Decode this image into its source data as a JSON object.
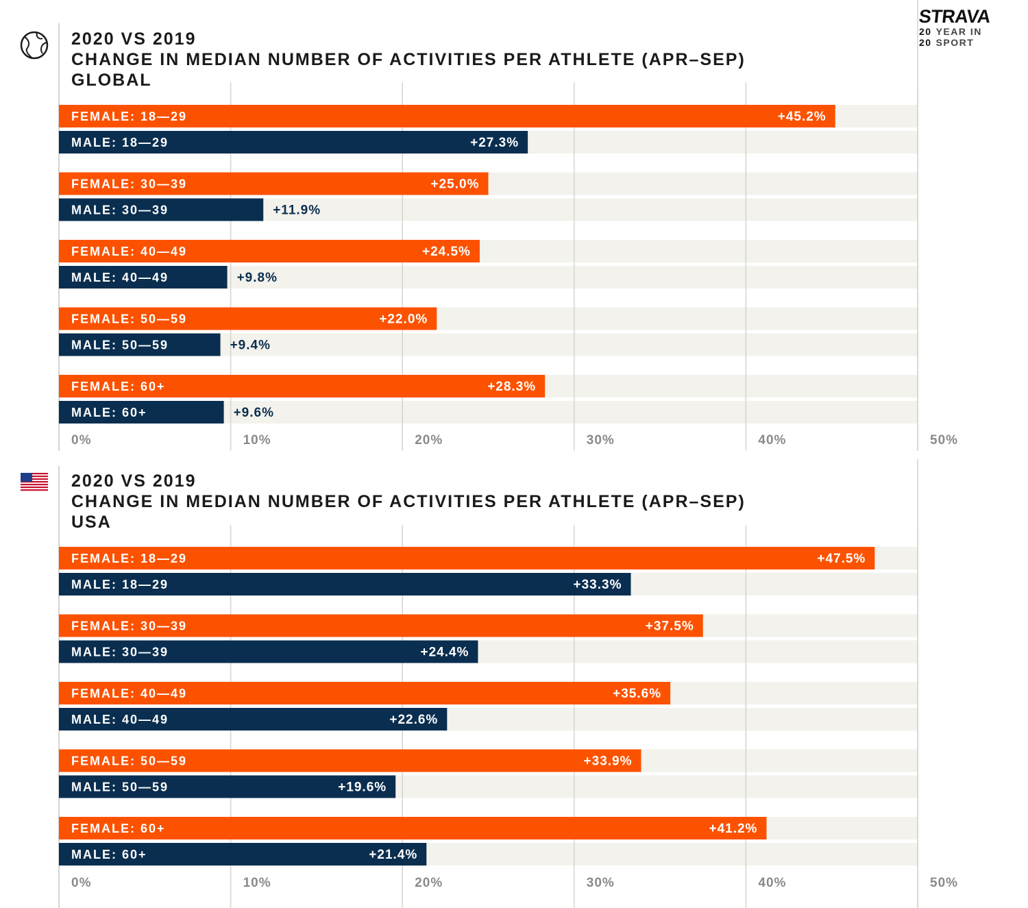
{
  "brand": {
    "logo": "STRAVA",
    "line1_num": "20",
    "line1_text": "YEAR IN",
    "line2_num": "20",
    "line2_text": "SPORT"
  },
  "colors": {
    "female": "#fc5200",
    "male": "#0a2e4f",
    "track": "#f3f2ec",
    "grid": "#d4d4d0",
    "value_outside": "#0a2e4f"
  },
  "chart_data": [
    {
      "type": "bar",
      "orientation": "horizontal",
      "icon": "globe-icon",
      "title_lines": [
        "2020 VS 2019",
        "CHANGE IN MEDIAN NUMBER OF ACTIVITIES PER ATHLETE (APR–SEP)",
        "GLOBAL"
      ],
      "xlim": [
        0,
        50
      ],
      "xticks": [
        0,
        10,
        20,
        30,
        40,
        50
      ],
      "xtick_labels": [
        "0%",
        "10%",
        "20%",
        "30%",
        "40%",
        "50%"
      ],
      "grid": true,
      "bars": [
        {
          "label": "FEMALE: 18—29",
          "group": "female",
          "value": 45.2,
          "value_label": "+45.2%"
        },
        {
          "label": "MALE: 18—29",
          "group": "male",
          "value": 27.3,
          "value_label": "+27.3%"
        },
        {
          "label": "FEMALE: 30—39",
          "group": "female",
          "value": 25.0,
          "value_label": "+25.0%"
        },
        {
          "label": "MALE: 30—39",
          "group": "male",
          "value": 11.9,
          "value_label": "+11.9%"
        },
        {
          "label": "FEMALE: 40—49",
          "group": "female",
          "value": 24.5,
          "value_label": "+24.5%"
        },
        {
          "label": "MALE: 40—49",
          "group": "male",
          "value": 9.8,
          "value_label": "+9.8%"
        },
        {
          "label": "FEMALE: 50—59",
          "group": "female",
          "value": 22.0,
          "value_label": "+22.0%"
        },
        {
          "label": "MALE: 50—59",
          "group": "male",
          "value": 9.4,
          "value_label": "+9.4%"
        },
        {
          "label": "FEMALE: 60+",
          "group": "female",
          "value": 28.3,
          "value_label": "+28.3%"
        },
        {
          "label": "MALE: 60+",
          "group": "male",
          "value": 9.6,
          "value_label": "+9.6%"
        }
      ]
    },
    {
      "type": "bar",
      "orientation": "horizontal",
      "icon": "us-flag-icon",
      "title_lines": [
        "2020 VS 2019",
        "CHANGE IN MEDIAN NUMBER OF ACTIVITIES PER ATHLETE (APR–SEP)",
        "USA"
      ],
      "xlim": [
        0,
        50
      ],
      "xticks": [
        0,
        10,
        20,
        30,
        40,
        50
      ],
      "xtick_labels": [
        "0%",
        "10%",
        "20%",
        "30%",
        "40%",
        "50%"
      ],
      "grid": true,
      "bars": [
        {
          "label": "FEMALE: 18—29",
          "group": "female",
          "value": 47.5,
          "value_label": "+47.5%"
        },
        {
          "label": "MALE: 18—29",
          "group": "male",
          "value": 33.3,
          "value_label": "+33.3%"
        },
        {
          "label": "FEMALE: 30—39",
          "group": "female",
          "value": 37.5,
          "value_label": "+37.5%"
        },
        {
          "label": "MALE: 30—39",
          "group": "male",
          "value": 24.4,
          "value_label": "+24.4%"
        },
        {
          "label": "FEMALE: 40—49",
          "group": "female",
          "value": 35.6,
          "value_label": "+35.6%"
        },
        {
          "label": "MALE: 40—49",
          "group": "male",
          "value": 22.6,
          "value_label": "+22.6%"
        },
        {
          "label": "FEMALE: 50—59",
          "group": "female",
          "value": 33.9,
          "value_label": "+33.9%"
        },
        {
          "label": "MALE: 50—59",
          "group": "male",
          "value": 19.6,
          "value_label": "+19.6%"
        },
        {
          "label": "FEMALE: 60+",
          "group": "female",
          "value": 41.2,
          "value_label": "+41.2%"
        },
        {
          "label": "MALE: 60+",
          "group": "male",
          "value": 21.4,
          "value_label": "+21.4%"
        }
      ]
    }
  ]
}
